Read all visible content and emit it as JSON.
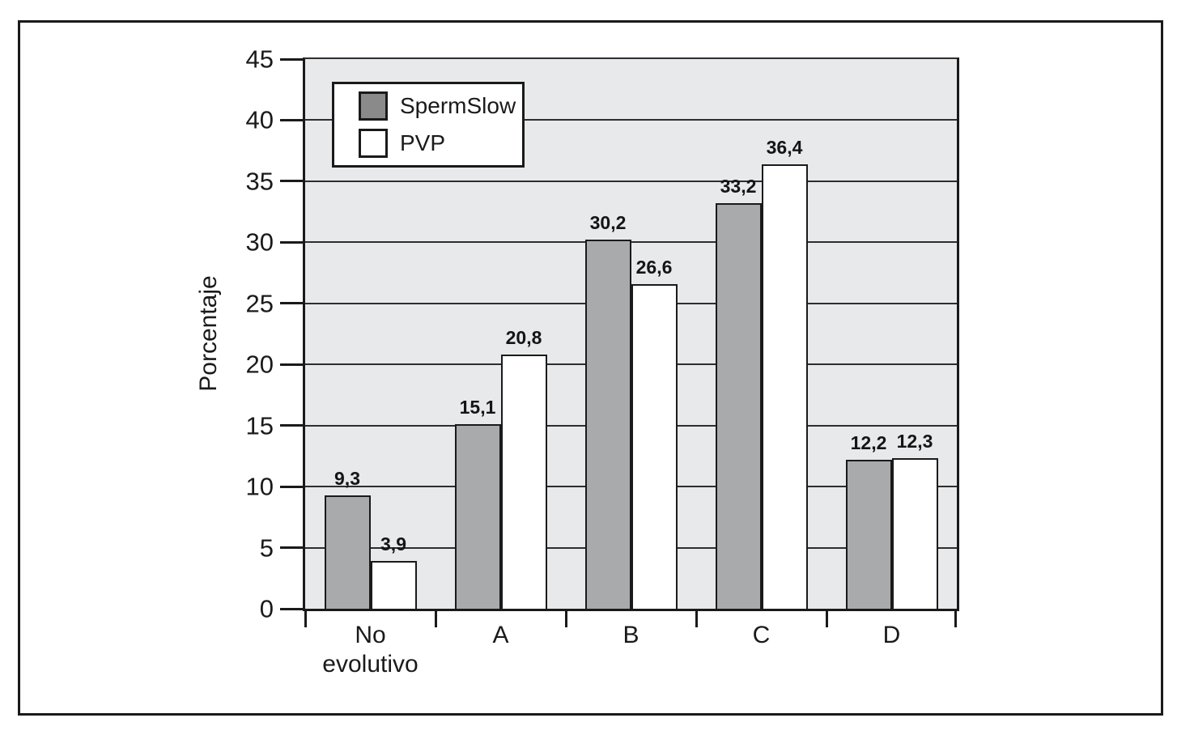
{
  "chart_data": {
    "type": "bar",
    "title": "",
    "ylabel": "Porcentaje",
    "xlabel": "",
    "categories": [
      "No evolutivo",
      "A",
      "B",
      "C",
      "D"
    ],
    "series": [
      {
        "name": "SpermSlow",
        "values": [
          9.3,
          15.1,
          30.2,
          33.2,
          12.2
        ],
        "labels": [
          "9,3",
          "15,1",
          "30,2",
          "33,2",
          "12,2"
        ],
        "color": "#a8aaac",
        "swatch": "#8a8a8a"
      },
      {
        "name": "PVP",
        "values": [
          3.9,
          20.8,
          26.6,
          36.4,
          12.3
        ],
        "labels": [
          "3,9",
          "20,8",
          "26,6",
          "36,4",
          "12,3"
        ],
        "color": "#ffffff",
        "swatch": "#ffffff"
      }
    ],
    "ylim": [
      0,
      45
    ],
    "yticks": [
      0,
      5,
      10,
      15,
      20,
      25,
      30,
      35,
      40,
      45
    ],
    "grid": true,
    "legend_position": "top-left",
    "plot_background": "#e8e9ea",
    "axis_color": "#1a1a1a",
    "grid_color": "#2e2e2e"
  }
}
